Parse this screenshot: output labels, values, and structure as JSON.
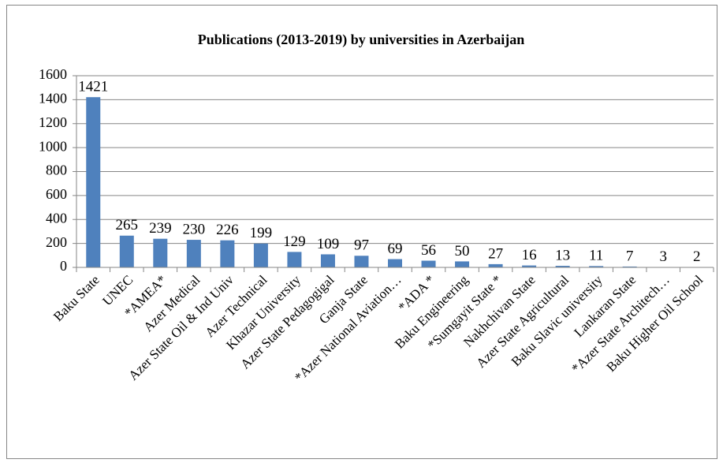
{
  "chart_data": {
    "type": "bar",
    "title": "Publications (2013-2019)  by universities in Azerbaijan",
    "categories": [
      "Baku State",
      "UNEC",
      "*AMEA*",
      "Azer Medical",
      "Azer  State Oil & Ind Univ",
      "Azer Technical",
      "Khazar University",
      "Azer State Pedagogigal",
      "Ganja State",
      "*Azer National Aviation…",
      "*ADA *",
      "Baku Engineering",
      "*Sumgayit State *",
      "Nakhchivan State",
      "Azer State Agricultural",
      "Baku Slavic university",
      "Lankaran State",
      "*Azer State Architech…",
      "Baku Higher Oil School"
    ],
    "values": [
      1421,
      265,
      239,
      230,
      226,
      199,
      129,
      109,
      97,
      69,
      56,
      50,
      27,
      16,
      13,
      11,
      7,
      3,
      2
    ],
    "color": "#4f81bd",
    "ylim": [
      0,
      1600
    ],
    "yticks": [
      0,
      200,
      400,
      600,
      800,
      1000,
      1200,
      1400,
      1600
    ],
    "grid": true
  }
}
